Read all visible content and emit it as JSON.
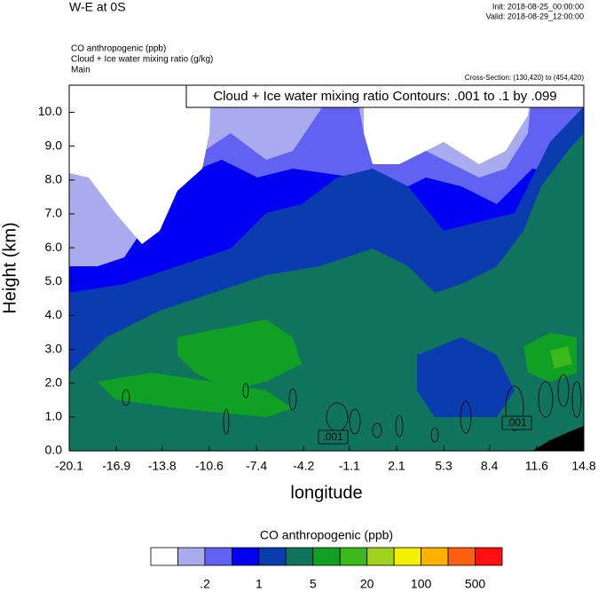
{
  "header": {
    "title": "W-E at 0S",
    "init": "Init: 2018-08-25_00:00:00",
    "valid": "Valid: 2018-08-29_12:00:00"
  },
  "fields": [
    "CO anthropogenic   (ppb)",
    "Cloud + Ice water mixing ratio   (g/kg)",
    "Main"
  ],
  "cross_section": "Cross-Section: (130,420) to (454,420)",
  "chart_data": {
    "type": "contour",
    "annotation": "Cloud + Ice water mixing ratio Contours: .001 to .1 by .099",
    "x_label": "longitude",
    "y_label": "Height (km)",
    "xlim": [
      -20.1,
      14.8
    ],
    "xticks": [
      -20.1,
      -16.9,
      -13.8,
      -10.6,
      -7.4,
      -4.2,
      -1.1,
      2.1,
      5.3,
      8.4,
      11.6,
      14.8
    ],
    "ylim": [
      0,
      10.8
    ],
    "yticks": [
      {
        "value": 0,
        "label": "0.0"
      },
      {
        "value": 1,
        "label": "1.0"
      },
      {
        "value": 2,
        "label": "2.0"
      },
      {
        "value": 3,
        "label": "3.0"
      },
      {
        "value": 4,
        "label": "4.0"
      },
      {
        "value": 5,
        "label": "5.0"
      },
      {
        "value": 6,
        "label": "6.0"
      },
      {
        "value": 7,
        "label": "7.0"
      },
      {
        "value": 8,
        "label": "8.0"
      },
      {
        "value": 9,
        "label": "9.0"
      },
      {
        "value": 10,
        "label": "10.0"
      }
    ],
    "contour_labels": [
      ".001",
      ".001"
    ],
    "colorbar": {
      "title": "CO anthropogenic  (ppb)",
      "colors": [
        "#ffffff",
        "#aaaaee",
        "#6262f2",
        "#0000f2",
        "#0a3cb0",
        "#10735e",
        "#10a024",
        "#3cb81c",
        "#a2d21e",
        "#f2f200",
        "#ffb000",
        "#ff6010",
        "#ff1010"
      ],
      "labels": [
        ".2",
        "1",
        "5",
        "20",
        "100",
        "500"
      ]
    }
  }
}
